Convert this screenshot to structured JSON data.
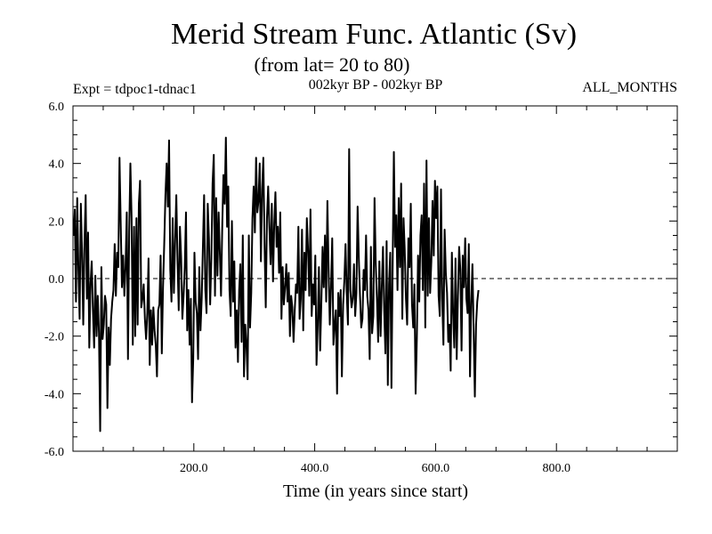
{
  "chart_data": {
    "type": "line",
    "title": "Merid Stream Func. Atlantic (Sv)",
    "subtitle": "(from lat= 20 to 80)",
    "left_label": "Expt = tdpoc1-tdnac1",
    "center_label": "002kyr BP - 002kyr BP",
    "right_label": "ALL_MONTHS",
    "xlabel": "Time (in years since start)",
    "ylabel": "",
    "xlim": [
      0,
      1000
    ],
    "ylim": [
      -6,
      6
    ],
    "x_ticks": [
      200,
      400,
      600,
      800
    ],
    "x_tick_labels": [
      "200.0",
      "400.0",
      "600.0",
      "800.0"
    ],
    "y_ticks": [
      -6,
      -4,
      -2,
      0,
      2,
      4,
      6
    ],
    "y_tick_labels": [
      "-6.0",
      "-4.0",
      "-2.0",
      "0.0",
      "2.0",
      "4.0",
      "6.0"
    ],
    "zero_line": true,
    "series": [
      {
        "name": "tdpoc1-tdnac1",
        "x_start": 1,
        "x_step": 2,
        "values": [
          1.5,
          2.4,
          -0.8,
          2.8,
          0.3,
          -1.4,
          2.6,
          0.9,
          -1.6,
          1.2,
          2.9,
          -0.7,
          1.6,
          -2.4,
          -0.2,
          0.6,
          -1.1,
          -2.4,
          0.1,
          -2.0,
          -0.6,
          -1.9,
          -5.3,
          0.4,
          -2.1,
          -1.6,
          -0.6,
          -0.9,
          -4.5,
          -1.7,
          -3.0,
          -1.4,
          -0.8,
          -0.4,
          1.2,
          -0.6,
          0.9,
          0.4,
          4.2,
          1.9,
          -0.3,
          0.8,
          -0.6,
          0.4,
          2.3,
          -2.8,
          1.6,
          4.0,
          2.1,
          -2.3,
          1.8,
          -2.0,
          2.1,
          -1.6,
          2.6,
          3.4,
          -1.0,
          -0.7,
          -0.2,
          -1.4,
          -2.1,
          -1.2,
          0.7,
          -3.0,
          -1.1,
          -2.3,
          -1.0,
          -1.8,
          -2.3,
          -3.4,
          -1.1,
          -0.9,
          0.8,
          -2.6,
          -0.3,
          1.2,
          2.9,
          4.0,
          2.5,
          4.8,
          0.3,
          -0.8,
          2.1,
          -0.5,
          1.3,
          2.9,
          0.6,
          -1.1,
          1.8,
          0.7,
          -1.4,
          -0.6,
          0.4,
          2.3,
          -1.8,
          -0.4,
          -2.3,
          -0.7,
          -4.3,
          -2.8,
          0.9,
          -0.8,
          -1.2,
          -2.8,
          0.4,
          -1.8,
          -0.7,
          1.1,
          2.9,
          -0.4,
          -1.2,
          2.6,
          1.4,
          -0.9,
          0.7,
          3.3,
          4.3,
          -0.6,
          2.8,
          0.1,
          2.3,
          0.9,
          -0.6,
          1.8,
          3.6,
          2.6,
          4.9,
          1.8,
          3.2,
          -0.4,
          -1.3,
          2.0,
          -0.8,
          0.6,
          -2.4,
          -1.1,
          -2.9,
          -0.4,
          0.5,
          -2.2,
          1.5,
          -3.4,
          -1.6,
          -2.3,
          -3.5,
          1.5,
          -1.7,
          -0.5,
          2.1,
          3.2,
          1.6,
          4.2,
          2.3,
          2.7,
          4.0,
          0.6,
          3.1,
          4.2,
          1.2,
          -1.0,
          2.1,
          3.2,
          1.8,
          0.5,
          2.6,
          -0.1,
          1.9,
          3.0,
          1.1,
          1.8,
          0.2,
          2.3,
          -1.4,
          0.4,
          -0.9,
          -0.3,
          0.5,
          -0.8,
          0.2,
          -2.0,
          -0.6,
          -1.0,
          -2.2,
          -1.1,
          -0.2,
          -0.5,
          1.8,
          -1.4,
          -0.7,
          1.7,
          -1.8,
          0.9,
          -0.4,
          2.1,
          1.0,
          -0.6,
          2.4,
          -1.3,
          -0.2,
          -0.9,
          0.8,
          -3.0,
          -1.6,
          0.4,
          -2.5,
          -0.8,
          1.1,
          -0.3,
          1.5,
          -0.8,
          2.7,
          0.3,
          -1.6,
          -0.3,
          1.4,
          -2.3,
          -1.6,
          -1.1,
          -4.0,
          -0.5,
          -1.3,
          -0.4,
          -3.4,
          -0.9,
          -0.1,
          1.2,
          -0.5,
          -1.6,
          4.5,
          -0.4,
          -1.0,
          -0.7,
          0.5,
          -1.3,
          -0.5,
          2.5,
          0.7,
          -0.6,
          -1.7,
          -1.4,
          0.3,
          -0.4,
          1.5,
          -0.6,
          -1.1,
          -2.8,
          1.1,
          -1.9,
          -1.3,
          2.8,
          0.5,
          -0.7,
          -2.2,
          0.6,
          -2.0,
          -0.3,
          1.1,
          -1.1,
          -2.6,
          1.3,
          -3.7,
          -0.2,
          0.9,
          -3.8,
          0.5,
          4.4,
          1.1,
          2.2,
          -0.4,
          2.8,
          0.4,
          3.3,
          -1.4,
          2.1,
          1.0,
          -0.7,
          -1.6,
          1.4,
          0.4,
          2.6,
          -0.9,
          -1.7,
          -0.2,
          -4.0,
          -2.1,
          0.8,
          -0.8,
          1.5,
          2.2,
          -0.4,
          3.3,
          -1.7,
          4.1,
          -0.6,
          2.1,
          -0.5,
          0.6,
          2.7,
          0.8,
          3.4,
          2.1,
          3.2,
          -0.6,
          -1.3,
          3.1,
          -0.7,
          -2.3,
          1.7,
          0.2,
          -0.5,
          -2.2,
          -1.6,
          -3.2,
          0.9,
          -1.2,
          -2.4,
          0.7,
          -2.8,
          -0.6,
          1.1,
          0.3,
          -2.5,
          0.8,
          -0.3,
          1.4,
          -0.7,
          -1.2,
          1.2,
          -3.4,
          -0.9,
          0.5,
          -1.8,
          -4.1,
          -1.6,
          -0.8,
          -0.4
        ]
      }
    ]
  }
}
